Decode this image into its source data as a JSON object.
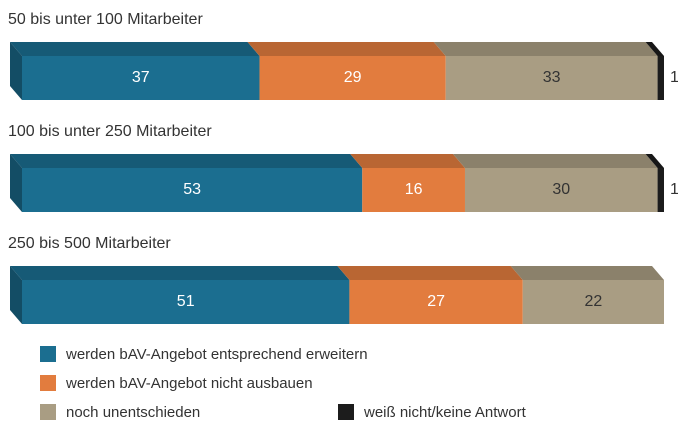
{
  "chart_data": {
    "type": "stacked-bar-3d",
    "categories": [
      "50 bis unter 100 Mitarbeiter",
      "100 bis unter 250 Mitarbeiter",
      "250 bis 500 Mitarbeiter"
    ],
    "series": [
      {
        "name": "werden bAV-Angebot entsprechend erweitern",
        "color": "#1b6e90",
        "label_color": "#ffffff",
        "values": [
          37,
          53,
          51
        ]
      },
      {
        "name": "werden bAV-Angebot nicht ausbauen",
        "color": "#e27c3e",
        "label_color": "#ffffff",
        "values": [
          29,
          16,
          27
        ]
      },
      {
        "name": "noch unentschieden",
        "color": "#a99d83",
        "label_color": "#333333",
        "values": [
          33,
          30,
          22
        ]
      },
      {
        "name": "weiß nicht/keine Antwort",
        "color": "#1c1c1c",
        "label_color": "#333333",
        "values": [
          1,
          1,
          null
        ]
      }
    ],
    "xlim": [
      0,
      100
    ]
  }
}
